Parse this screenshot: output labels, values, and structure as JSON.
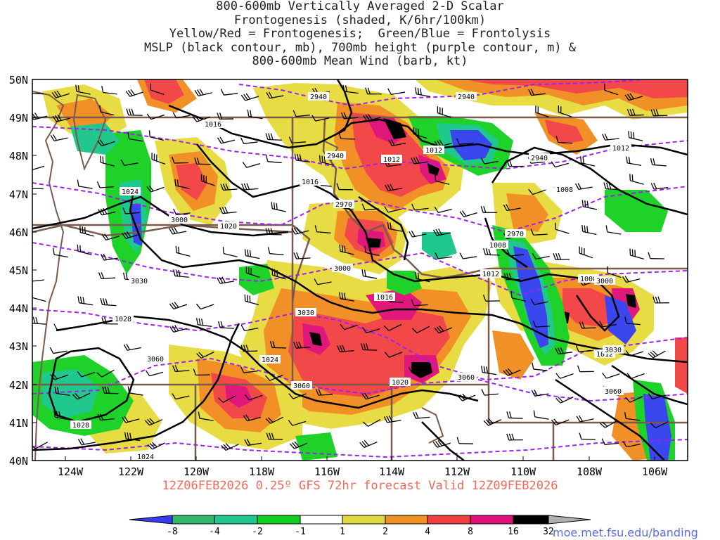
{
  "title_lines": [
    "800-600mb Vertically Averaged 2-D Scalar",
    "Frontogenesis (shaded, K/6hr/100km)",
    "Yellow/Red = Frontogenesis;  Green/Blue = Frontolysis",
    "MSLP (black contour, mb), 700mb height (purple contour, m) &",
    "800-600mb Mean Wind (barb, kt)"
  ],
  "footer": "12Z06FEB2026 0.25º GFS 72hr forecast Valid 12Z09FEB2026",
  "credit": "moe.met.fsu.edu/banding",
  "lat_labels": [
    "50N",
    "49N",
    "48N",
    "47N",
    "46N",
    "45N",
    "44N",
    "43N",
    "42N",
    "41N",
    "40N"
  ],
  "lon_labels": [
    "124W",
    "122W",
    "120W",
    "118W",
    "116W",
    "114W",
    "112W",
    "110W",
    "108W",
    "106W"
  ],
  "colorbar": {
    "labels": [
      "-8",
      "-4",
      "-2",
      "-1",
      "1",
      "2",
      "4",
      "8",
      "16",
      "32"
    ],
    "colors": [
      "#3a3af0",
      "#2fb86a",
      "#20c890",
      "#10d020",
      "#ffffff",
      "#e0d840",
      "#f09020",
      "#f04040",
      "#e0107a",
      "#000000",
      "#b0b0b0"
    ]
  },
  "shading_colors": {
    "yellow": "#e8dc44",
    "orange": "#f29028",
    "red": "#f2484a",
    "magenta": "#e0187c",
    "black": "#000000",
    "green": "#1ed22a",
    "teal": "#20c88e",
    "lightgreen": "#34c89a",
    "blue": "#3a46ee"
  },
  "contour_colors": {
    "mslp": "#000000",
    "height": "#a020f0",
    "borders": "#7a5a4a"
  },
  "mslp_labels": [
    "1016",
    "1012",
    "1012",
    "1012",
    "1008",
    "1008",
    "1008",
    "1024",
    "1020",
    "1016",
    "1016",
    "1012",
    "1028",
    "1024",
    "1020",
    "1012",
    "1028",
    "1024"
  ],
  "height_labels": [
    "2940",
    "2940",
    "2940",
    "2940",
    "2970",
    "2970",
    "3000",
    "3000",
    "3000",
    "3030",
    "3030",
    "3030",
    "3060",
    "3060",
    "3060",
    "3060"
  ]
}
